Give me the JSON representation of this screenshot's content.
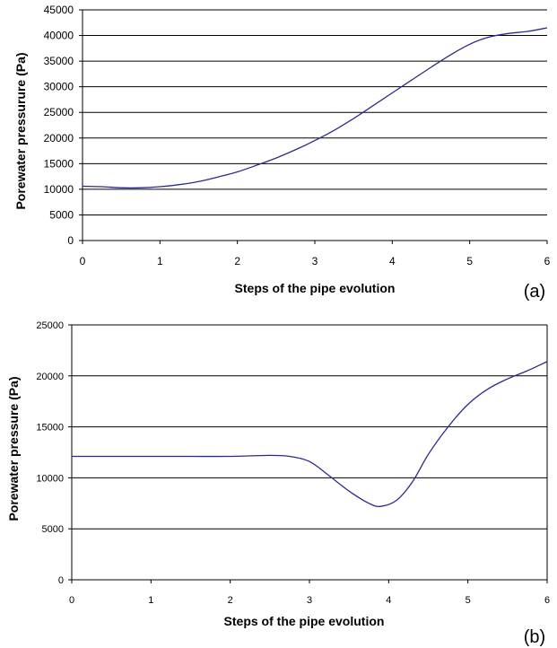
{
  "chart_data": [
    {
      "type": "line",
      "panel_label": "(a)",
      "xlabel": "Steps of the pipe evolution",
      "ylabel": "Porewater pressurure (Pa)",
      "xlim": [
        0,
        6
      ],
      "ylim": [
        0,
        45000
      ],
      "xticks": [
        "0",
        "1",
        "2",
        "3",
        "4",
        "5",
        "6"
      ],
      "yticks": [
        "0",
        "5000",
        "10000",
        "15000",
        "20000",
        "25000",
        "30000",
        "35000",
        "40000",
        "45000"
      ],
      "grid": "horizontal",
      "legend": "none",
      "line_color": "#2b2b8f",
      "series": [
        {
          "x": [
            0,
            0.25,
            0.5,
            0.75,
            1,
            1.25,
            1.5,
            1.75,
            2,
            2.25,
            2.5,
            2.75,
            3,
            3.25,
            3.5,
            3.75,
            4,
            4.25,
            4.5,
            4.75,
            5,
            5.25,
            5.5,
            5.75,
            6
          ],
          "values": [
            10600,
            10500,
            10300,
            10300,
            10500,
            10900,
            11500,
            12400,
            13400,
            14700,
            16100,
            17700,
            19500,
            21500,
            23800,
            26300,
            28800,
            31300,
            33800,
            36200,
            38300,
            39700,
            40400,
            40800,
            41500
          ]
        }
      ]
    },
    {
      "type": "line",
      "panel_label": "(b)",
      "xlabel": "Steps of the pipe evolution",
      "ylabel": "Porewater pressure (Pa)",
      "xlim": [
        0,
        6
      ],
      "ylim": [
        0,
        25000
      ],
      "xticks": [
        "0",
        "1",
        "2",
        "3",
        "4",
        "5",
        "6"
      ],
      "yticks": [
        "0",
        "5000",
        "10000",
        "15000",
        "20000",
        "25000"
      ],
      "grid": "horizontal",
      "legend": "none",
      "line_color": "#2b2b8f",
      "series": [
        {
          "x": [
            0,
            0.5,
            1,
            1.5,
            2,
            2.5,
            2.75,
            3,
            3.25,
            3.5,
            3.75,
            3.9,
            4.1,
            4.3,
            4.5,
            4.75,
            5,
            5.25,
            5.5,
            5.75,
            6
          ],
          "values": [
            12100,
            12100,
            12100,
            12100,
            12100,
            12200,
            12100,
            11600,
            10200,
            8700,
            7500,
            7200,
            7800,
            9600,
            12300,
            15000,
            17200,
            18700,
            19700,
            20500,
            21400
          ]
        }
      ]
    }
  ]
}
